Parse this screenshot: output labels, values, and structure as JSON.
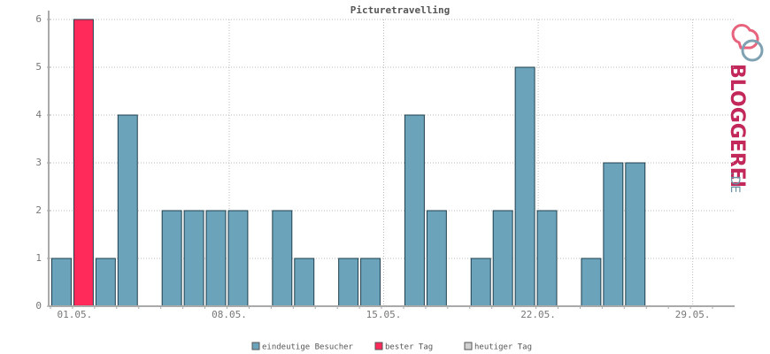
{
  "chart_data": {
    "type": "bar",
    "title": "Picturetravelling",
    "categories": [
      "01.05.",
      null,
      null,
      null,
      null,
      null,
      null,
      "08.05.",
      null,
      null,
      null,
      null,
      null,
      null,
      "15.05.",
      null,
      null,
      null,
      null,
      null,
      null,
      "22.05.",
      null,
      null,
      null,
      null,
      null,
      null,
      "29.05.",
      null,
      null
    ],
    "values": [
      1,
      6,
      1,
      4,
      0,
      2,
      2,
      2,
      2,
      0,
      2,
      1,
      0,
      1,
      1,
      0,
      4,
      2,
      0,
      1,
      2,
      5,
      2,
      0,
      1,
      3,
      3,
      0,
      0,
      0,
      0
    ],
    "colors": [
      "#6ba3bb",
      "#ff2a5a",
      "#6ba3bb",
      "#6ba3bb",
      "#6ba3bb",
      "#6ba3bb",
      "#6ba3bb",
      "#6ba3bb",
      "#6ba3bb",
      "#6ba3bb",
      "#6ba3bb",
      "#6ba3bb",
      "#6ba3bb",
      "#6ba3bb",
      "#6ba3bb",
      "#6ba3bb",
      "#6ba3bb",
      "#6ba3bb",
      "#6ba3bb",
      "#6ba3bb",
      "#6ba3bb",
      "#6ba3bb",
      "#6ba3bb",
      "#6ba3bb",
      "#6ba3bb",
      "#6ba3bb",
      "#6ba3bb",
      "#6ba3bb",
      "#6ba3bb",
      "#6ba3bb",
      "#6ba3bb"
    ],
    "ylim": [
      0,
      6
    ],
    "yticks": [
      0,
      1,
      2,
      3,
      4,
      5,
      6
    ],
    "grid": true,
    "legend": [
      {
        "name": "eindeutige Besucher",
        "color": "#6ba3bb"
      },
      {
        "name": "bester Tag",
        "color": "#ff2a5a"
      },
      {
        "name": "heutiger Tag",
        "color": "#d0d0d0"
      }
    ],
    "logo": {
      "text": "BLOGGEREI",
      "suffix": ".DE"
    }
  }
}
